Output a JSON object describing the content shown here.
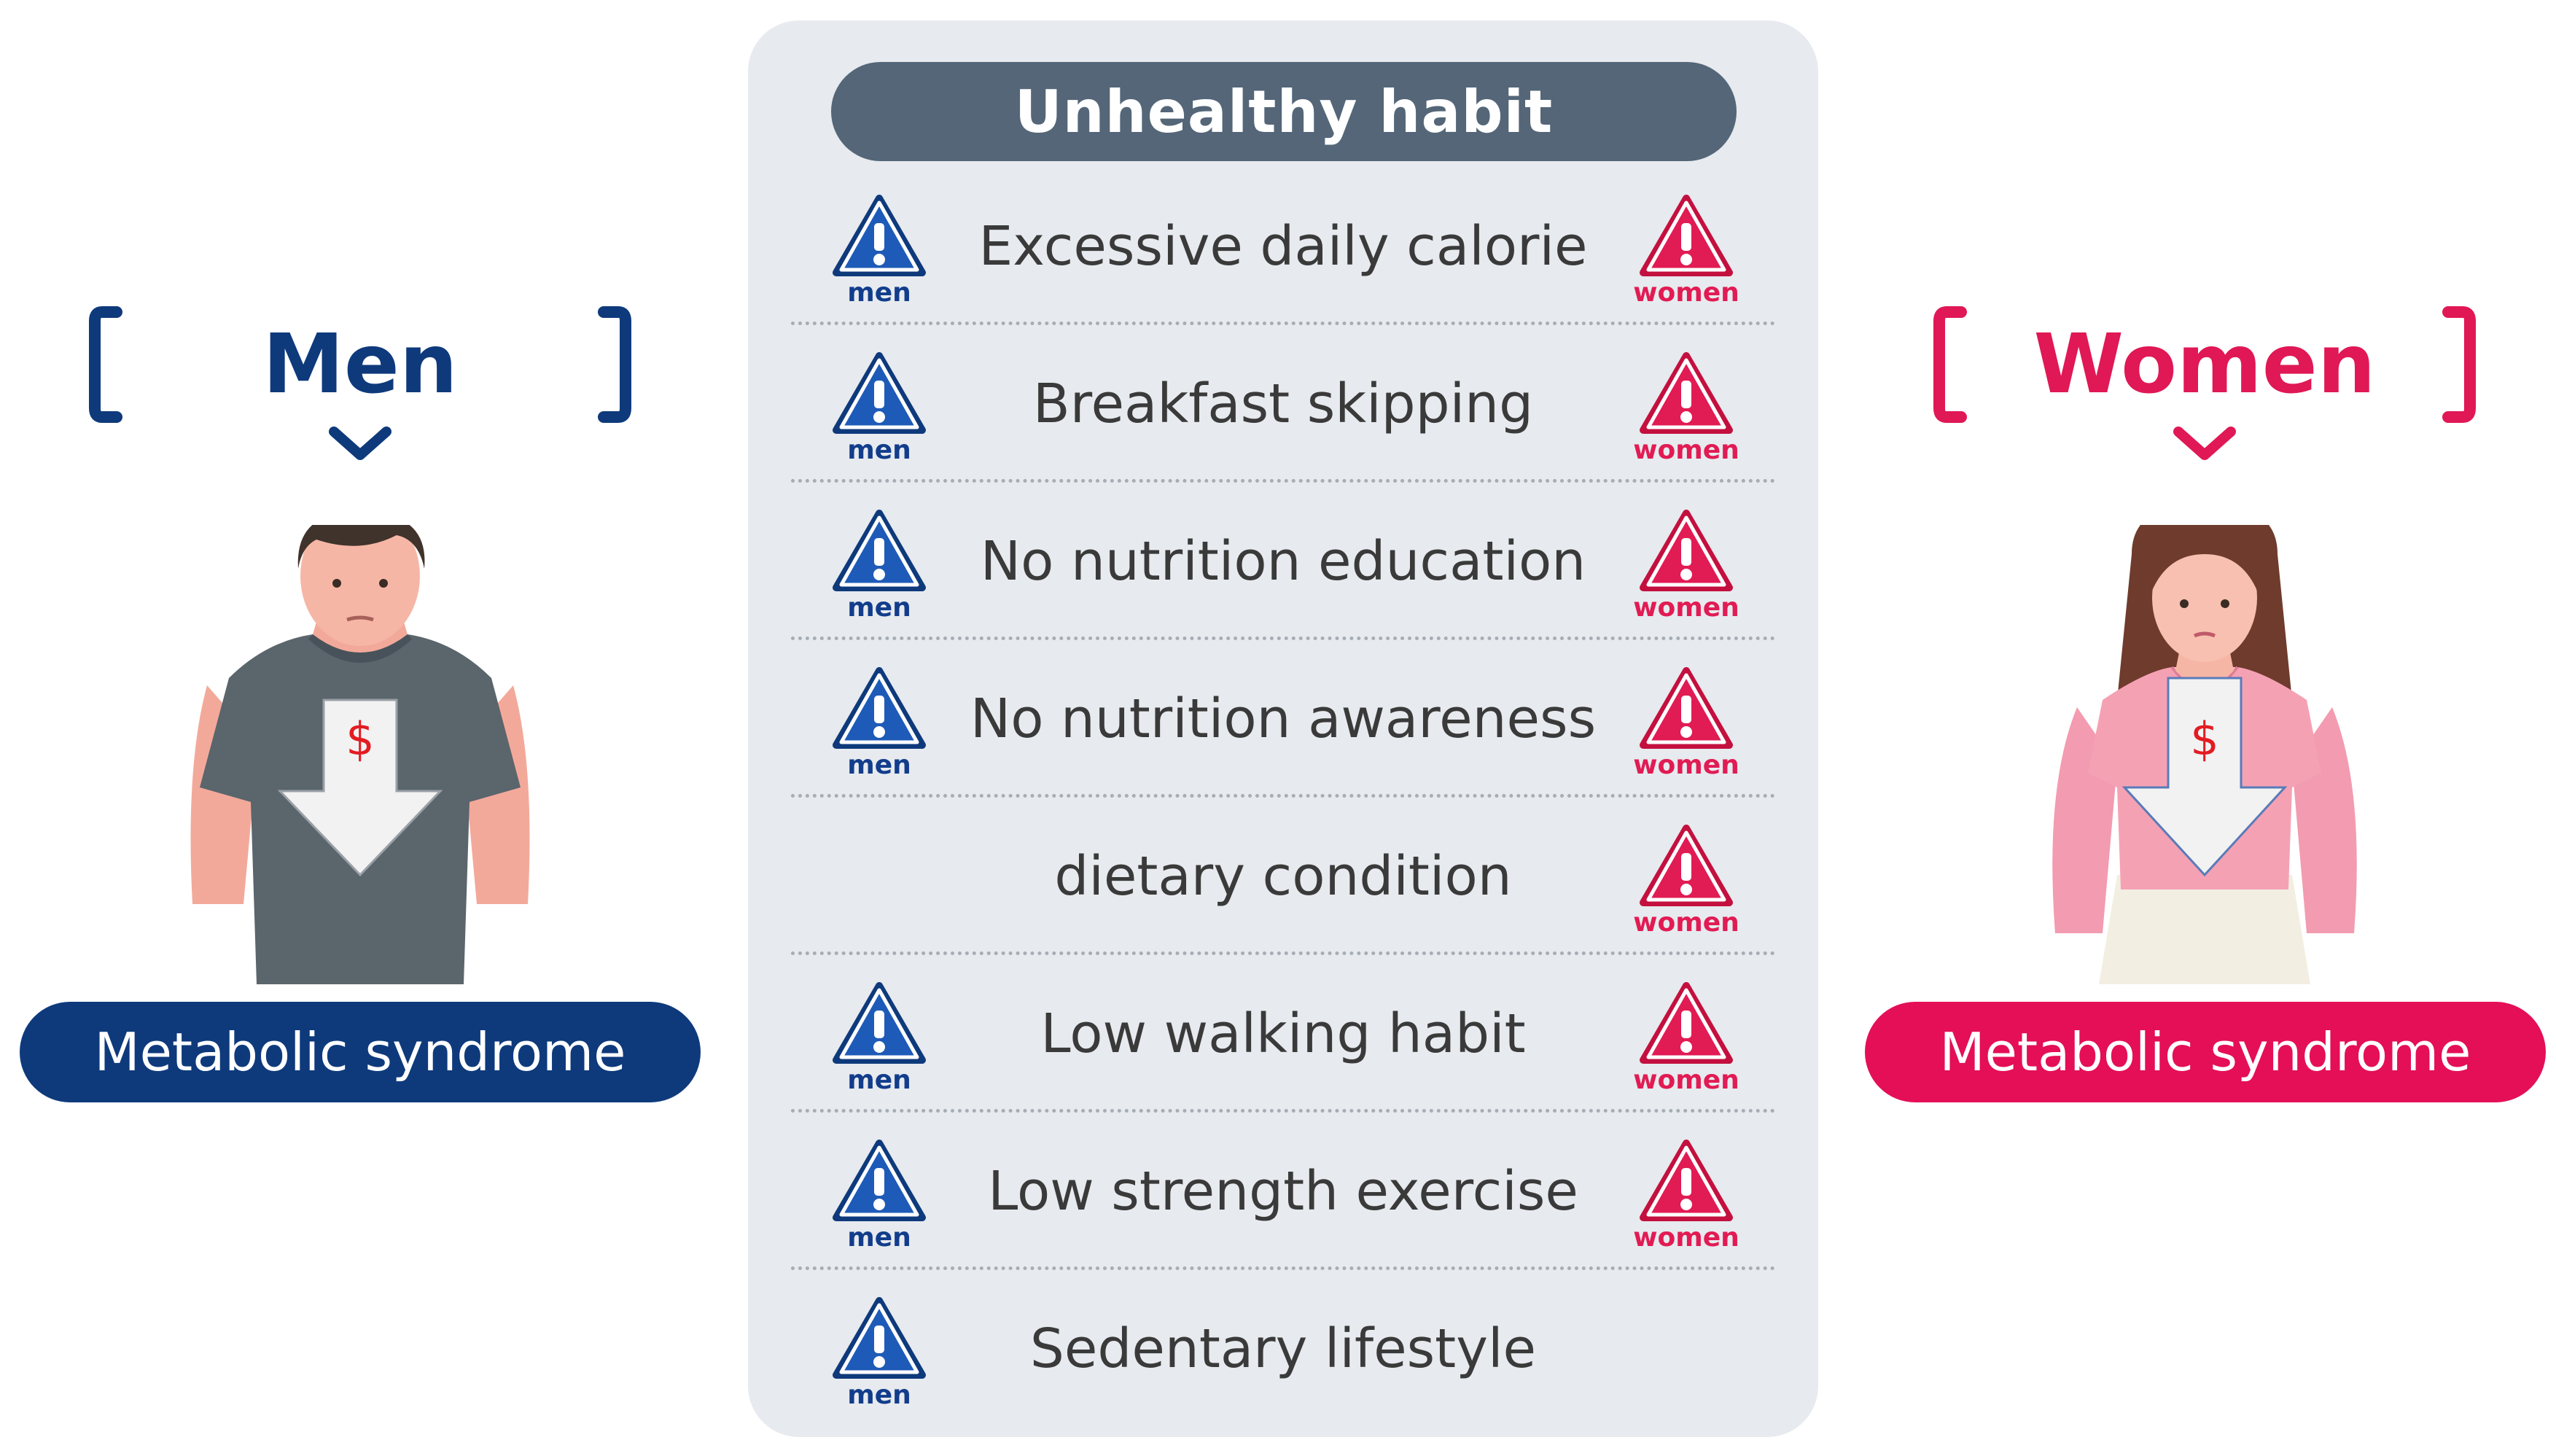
{
  "colors": {
    "men_primary": "#0e3a7c",
    "women_primary": "#e01855",
    "panel_bg": "#e7eaee",
    "header_bg": "#546678",
    "warning_men": "#1e5bb8",
    "warning_women": "#e11b53"
  },
  "panel": {
    "title": "Unhealthy habit",
    "habits": [
      {
        "label": "Excessive daily calorie",
        "men": true,
        "women": true
      },
      {
        "label": "Breakfast skipping",
        "men": true,
        "women": true
      },
      {
        "label": "No nutrition education",
        "men": true,
        "women": true
      },
      {
        "label": "No nutrition awareness",
        "men": true,
        "women": true
      },
      {
        "label": "dietary condition",
        "men": false,
        "women": true
      },
      {
        "label": "Low walking habit",
        "men": true,
        "women": true
      },
      {
        "label": "Low strength exercise",
        "men": true,
        "women": true
      },
      {
        "label": "Sedentary lifestyle",
        "men": true,
        "women": false
      }
    ],
    "men_tag": "men",
    "women_tag": "women"
  },
  "left": {
    "group_label": "Men",
    "outcome": "Metabolic syndrome",
    "arrow_symbol": "$",
    "icon": "man-figure-icon"
  },
  "right": {
    "group_label": "Women",
    "outcome": "Metabolic syndrome",
    "arrow_symbol": "$",
    "icon": "woman-figure-icon"
  }
}
